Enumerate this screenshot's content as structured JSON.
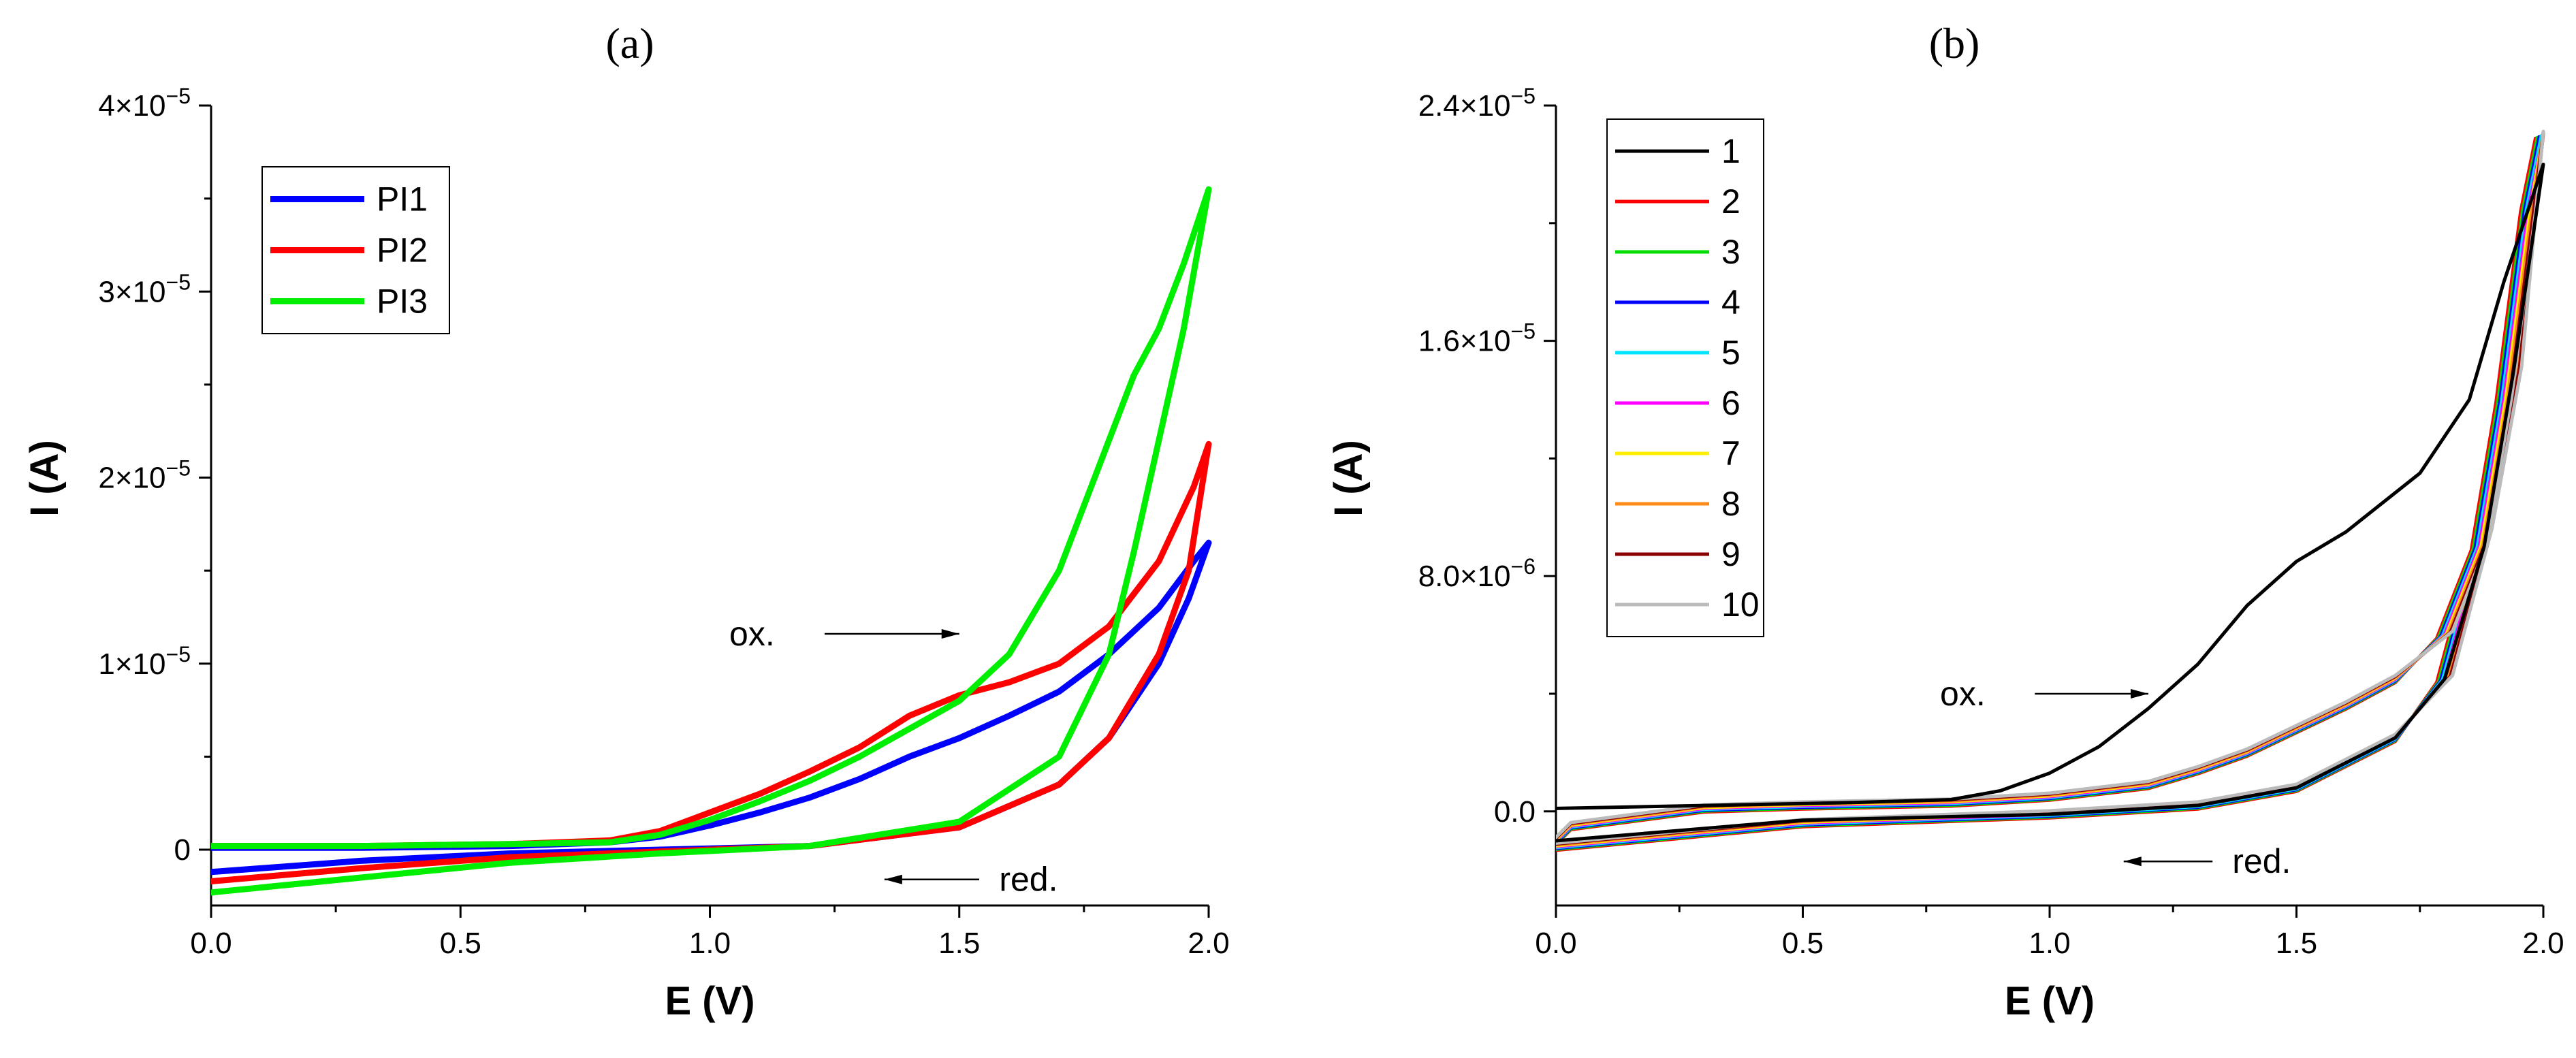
{
  "chart_data": [
    {
      "type": "line",
      "panel_label": "(a)",
      "xlabel": "E (V)",
      "ylabel": "I (A)",
      "xlim": [
        0,
        2.0
      ],
      "ylim": [
        -3e-06,
        4e-05
      ],
      "x_ticks": [
        0,
        0.5,
        1.0,
        1.5,
        2.0
      ],
      "x_tick_labels": [
        "0.0",
        "0.5",
        "1.0",
        "1.5",
        "2.0"
      ],
      "y_ticks": [
        0,
        1e-05,
        2e-05,
        3e-05,
        4e-05
      ],
      "y_tick_labels": [
        {
          "mant": "0",
          "exp": ""
        },
        {
          "mant": "1×10",
          "exp": "−5"
        },
        {
          "mant": "2×10",
          "exp": "−5"
        },
        {
          "mant": "3×10",
          "exp": "−5"
        },
        {
          "mant": "4×10",
          "exp": "−5"
        }
      ],
      "legend_position": "top-left",
      "series": [
        {
          "name": "PI1",
          "color": "#0000ff",
          "points": [
            [
              0,
              -1.2e-06
            ],
            [
              0.3,
              -6e-07
            ],
            [
              0.6,
              -2e-07
            ],
            [
              0.9,
              0.0
            ],
            [
              1.2,
              2e-07
            ],
            [
              1.5,
              1.2e-06
            ],
            [
              1.7,
              3.5e-06
            ],
            [
              1.8,
              6e-06
            ],
            [
              1.9,
              1e-05
            ],
            [
              1.96,
              1.35e-05
            ],
            [
              2.0,
              1.65e-05
            ],
            [
              1.97,
              1.55e-05
            ],
            [
              1.9,
              1.3e-05
            ],
            [
              1.8,
              1.05e-05
            ],
            [
              1.7,
              8.5e-06
            ],
            [
              1.6,
              7.2e-06
            ],
            [
              1.5,
              6e-06
            ],
            [
              1.4,
              5e-06
            ],
            [
              1.3,
              3.8e-06
            ],
            [
              1.2,
              2.8e-06
            ],
            [
              1.1,
              2e-06
            ],
            [
              1.0,
              1.3e-06
            ],
            [
              0.9,
              7e-07
            ],
            [
              0.8,
              4e-07
            ],
            [
              0.6,
              2e-07
            ],
            [
              0.3,
              1e-07
            ],
            [
              0,
              1e-07
            ]
          ]
        },
        {
          "name": "PI2",
          "color": "#ff0000",
          "points": [
            [
              0,
              -1.7e-06
            ],
            [
              0.3,
              -1e-06
            ],
            [
              0.6,
              -4e-07
            ],
            [
              0.9,
              -1e-07
            ],
            [
              1.2,
              2e-07
            ],
            [
              1.5,
              1.2e-06
            ],
            [
              1.7,
              3.5e-06
            ],
            [
              1.8,
              6e-06
            ],
            [
              1.9,
              1.05e-05
            ],
            [
              1.96,
              1.5e-05
            ],
            [
              2.0,
              2.18e-05
            ],
            [
              1.97,
              1.95e-05
            ],
            [
              1.9,
              1.55e-05
            ],
            [
              1.8,
              1.2e-05
            ],
            [
              1.7,
              1e-05
            ],
            [
              1.6,
              9e-06
            ],
            [
              1.5,
              8.3e-06
            ],
            [
              1.4,
              7.2e-06
            ],
            [
              1.3,
              5.5e-06
            ],
            [
              1.2,
              4.2e-06
            ],
            [
              1.1,
              3e-06
            ],
            [
              1.0,
              2e-06
            ],
            [
              0.9,
              1e-06
            ],
            [
              0.8,
              5e-07
            ],
            [
              0.6,
              3e-07
            ],
            [
              0.3,
              2e-07
            ],
            [
              0,
              2e-07
            ]
          ]
        },
        {
          "name": "PI3",
          "color": "#00ee00",
          "points": [
            [
              0,
              -2.3e-06
            ],
            [
              0.3,
              -1.5e-06
            ],
            [
              0.6,
              -7e-07
            ],
            [
              0.9,
              -2e-07
            ],
            [
              1.2,
              2e-07
            ],
            [
              1.5,
              1.5e-06
            ],
            [
              1.7,
              5e-06
            ],
            [
              1.8,
              1.05e-05
            ],
            [
              1.85,
              1.6e-05
            ],
            [
              1.9,
              2.2e-05
            ],
            [
              1.95,
              2.8e-05
            ],
            [
              2.0,
              3.55e-05
            ],
            [
              1.95,
              3.15e-05
            ],
            [
              1.9,
              2.8e-05
            ],
            [
              1.85,
              2.55e-05
            ],
            [
              1.8,
              2.2e-05
            ],
            [
              1.7,
              1.5e-05
            ],
            [
              1.6,
              1.05e-05
            ],
            [
              1.5,
              8e-06
            ],
            [
              1.4,
              6.5e-06
            ],
            [
              1.3,
              5e-06
            ],
            [
              1.2,
              3.7e-06
            ],
            [
              1.1,
              2.6e-06
            ],
            [
              1.0,
              1.6e-06
            ],
            [
              0.9,
              8e-07
            ],
            [
              0.8,
              4e-07
            ],
            [
              0.6,
              3e-07
            ],
            [
              0.3,
              2e-07
            ],
            [
              0,
              2e-07
            ]
          ]
        }
      ],
      "annotations": [
        {
          "text": "ox.",
          "x": 1.13,
          "y": 1.16e-05,
          "arrow_from": [
            1.23,
            1.16e-05
          ],
          "arrow_to": [
            1.5,
            1.16e-05
          ]
        },
        {
          "text": "red.",
          "x": 1.58,
          "y": -1.6e-06,
          "arrow_from": [
            1.54,
            -1.6e-06
          ],
          "arrow_to": [
            1.35,
            -1.6e-06
          ]
        }
      ]
    },
    {
      "type": "line",
      "panel_label": "(b)",
      "xlabel": "E (V)",
      "ylabel": "I (A)",
      "xlim": [
        0,
        2.0
      ],
      "ylim": [
        -3.2e-06,
        2.4e-05
      ],
      "x_ticks": [
        0,
        0.5,
        1.0,
        1.5,
        2.0
      ],
      "x_tick_labels": [
        "0.0",
        "0.5",
        "1.0",
        "1.5",
        "2.0"
      ],
      "y_ticks": [
        0,
        8e-06,
        1.6e-05,
        2.4e-05
      ],
      "y_tick_labels": [
        {
          "mant": "0.0",
          "exp": ""
        },
        {
          "mant": "8.0×10",
          "exp": "−6"
        },
        {
          "mant": "1.6×10",
          "exp": "−5"
        },
        {
          "mant": "2.4×10",
          "exp": "−5"
        }
      ],
      "legend_position": "top-left",
      "series": [
        {
          "name": "1",
          "color": "#000000"
        },
        {
          "name": "2",
          "color": "#ff0000"
        },
        {
          "name": "3",
          "color": "#00dd00"
        },
        {
          "name": "4",
          "color": "#0000ff"
        },
        {
          "name": "5",
          "color": "#00e5ff"
        },
        {
          "name": "6",
          "color": "#ff00ff"
        },
        {
          "name": "7",
          "color": "#ffee00"
        },
        {
          "name": "8",
          "color": "#ff8c1a"
        },
        {
          "name": "9",
          "color": "#8b0000"
        },
        {
          "name": "10",
          "color": "#bbbbbb"
        }
      ],
      "cycle1_points": [
        [
          0,
          -1e-06
        ],
        [
          0.5,
          -3e-07
        ],
        [
          1.0,
          -1e-07
        ],
        [
          1.3,
          2e-07
        ],
        [
          1.5,
          8e-07
        ],
        [
          1.7,
          2.5e-06
        ],
        [
          1.8,
          4.5e-06
        ],
        [
          1.88,
          9e-06
        ],
        [
          1.94,
          1.5e-05
        ],
        [
          2.0,
          2.2e-05
        ],
        [
          1.97,
          2.05e-05
        ],
        [
          1.92,
          1.8e-05
        ],
        [
          1.85,
          1.4e-05
        ],
        [
          1.75,
          1.15e-05
        ],
        [
          1.6,
          9.5e-06
        ],
        [
          1.5,
          8.5e-06
        ],
        [
          1.4,
          7e-06
        ],
        [
          1.3,
          5e-06
        ],
        [
          1.2,
          3.5e-06
        ],
        [
          1.1,
          2.2e-06
        ],
        [
          1.0,
          1.3e-06
        ],
        [
          0.9,
          7e-07
        ],
        [
          0.8,
          4e-07
        ],
        [
          0.6,
          3e-07
        ],
        [
          0.3,
          2e-07
        ],
        [
          0,
          1e-07
        ]
      ],
      "cycle_n_points": [
        [
          0,
          -1.2e-06
        ],
        [
          0.5,
          -4e-07
        ],
        [
          1.0,
          -1e-07
        ],
        [
          1.3,
          2e-07
        ],
        [
          1.5,
          8e-07
        ],
        [
          1.7,
          2.5e-06
        ],
        [
          1.8,
          4.5e-06
        ],
        [
          1.88,
          9.5e-06
        ],
        [
          1.94,
          1.5e-05
        ],
        [
          2.0,
          2.3e-05
        ],
        [
          1.97,
          2.05e-05
        ],
        [
          1.92,
          1.4e-05
        ],
        [
          1.87,
          9e-06
        ],
        [
          1.8,
          6e-06
        ],
        [
          1.7,
          4.5e-06
        ],
        [
          1.6,
          3.6e-06
        ],
        [
          1.5,
          2.8e-06
        ],
        [
          1.4,
          2e-06
        ],
        [
          1.3,
          1.4e-06
        ],
        [
          1.2,
          9e-07
        ],
        [
          1.0,
          5e-07
        ],
        [
          0.8,
          3e-07
        ],
        [
          0.5,
          2e-07
        ],
        [
          0.3,
          1e-07
        ],
        [
          0.03,
          -5e-07
        ],
        [
          0,
          -1e-06
        ]
      ],
      "annotations": [
        {
          "text": "ox.",
          "x": 0.87,
          "y": 4e-06,
          "arrow_from": [
            0.97,
            4e-06
          ],
          "arrow_to": [
            1.2,
            4e-06
          ]
        },
        {
          "text": "red.",
          "x": 1.37,
          "y": -1.7e-06,
          "arrow_from": [
            1.33,
            -1.7e-06
          ],
          "arrow_to": [
            1.15,
            -1.7e-06
          ]
        }
      ]
    }
  ]
}
